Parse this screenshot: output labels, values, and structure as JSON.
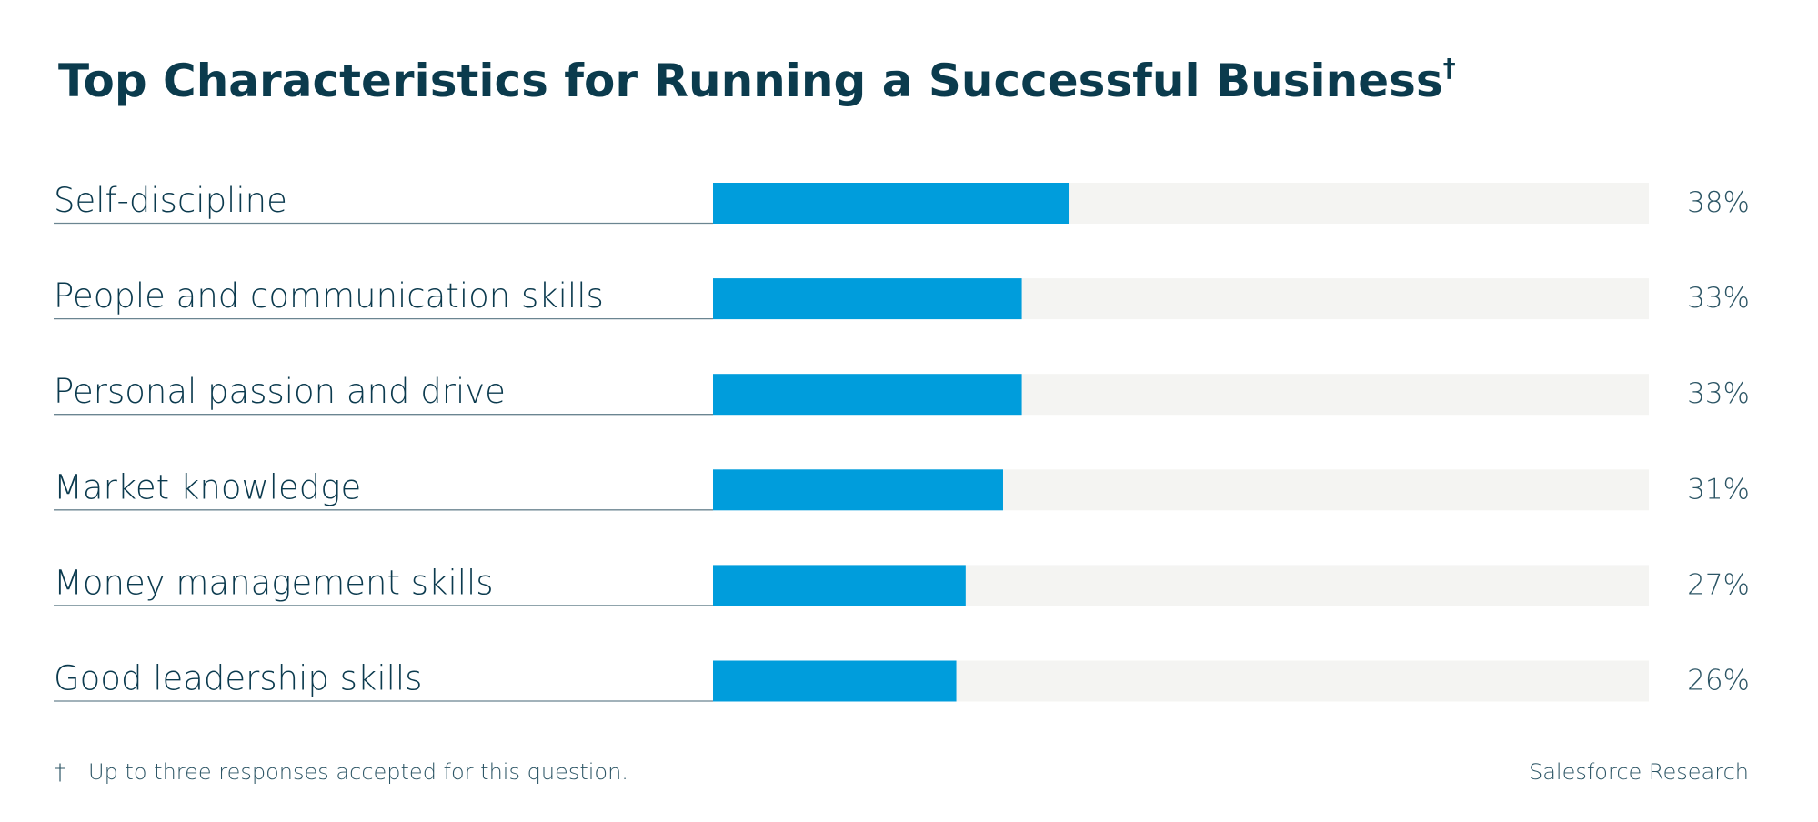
{
  "chart_data": {
    "type": "bar",
    "orientation": "horizontal",
    "title": "Top Characteristics for Running a Successful Business",
    "title_marker": "†",
    "categories": [
      "Self-discipline",
      "People and communication skills",
      "Personal passion and drive",
      "Market knowledge",
      "Money management skills",
      "Good leadership skills"
    ],
    "values": [
      38,
      33,
      33,
      31,
      27,
      26
    ],
    "value_labels": [
      "38%",
      "33%",
      "33%",
      "31%",
      "27%",
      "26%"
    ],
    "color": "#009ddc",
    "track_color": "#f4f4f2",
    "xlim": [
      0,
      100
    ],
    "footnote": {
      "marker": "†",
      "text": "Up to three responses accepted for this question."
    },
    "source": "Salesforce Research"
  }
}
